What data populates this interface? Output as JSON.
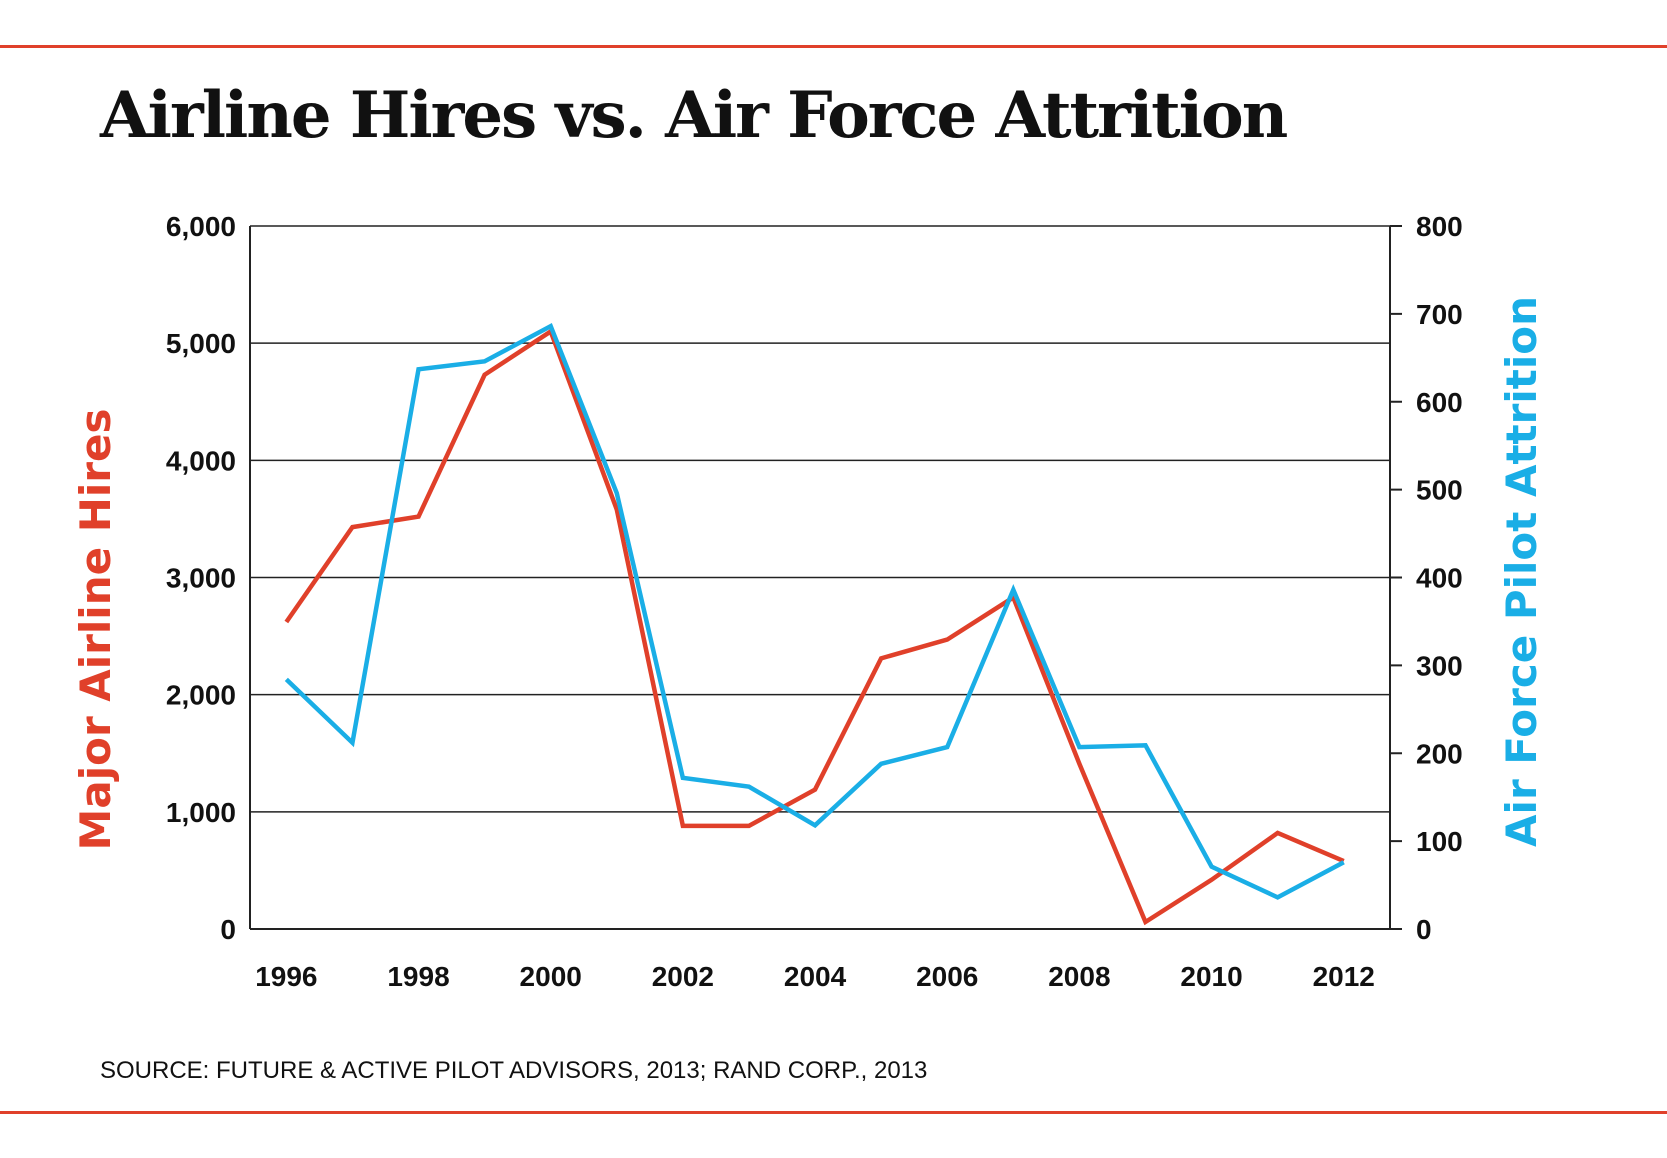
{
  "title": "Airline Hires vs. Air Force Attrition",
  "source": "SOURCE: FUTURE & ACTIVE PILOT ADVISORS, 2013; RAND CORP., 2013",
  "colors": {
    "rule": "#e0402a",
    "hires": "#e0402a",
    "attrition": "#1aaee6",
    "text": "#111111",
    "grid": "#222222"
  },
  "chart_data": {
    "type": "line",
    "title": "Airline Hires vs. Air Force Attrition",
    "xlabel": "",
    "x": [
      1996,
      1997,
      1998,
      1999,
      2000,
      2001,
      2002,
      2003,
      2004,
      2005,
      2006,
      2007,
      2008,
      2009,
      2010,
      2011,
      2012
    ],
    "x_ticks": [
      "1996",
      "1998",
      "2000",
      "2002",
      "2004",
      "2006",
      "2008",
      "2010",
      "2012"
    ],
    "x_range": [
      1995.45,
      2012.7
    ],
    "y_left": {
      "label": "Major Airline Hires",
      "range": [
        0,
        6000
      ],
      "ticks": [
        "0",
        "1,000",
        "2,000",
        "3,000",
        "4,000",
        "5,000",
        "6,000"
      ],
      "tick_values": [
        0,
        1000,
        2000,
        3000,
        4000,
        5000,
        6000
      ],
      "grid": true
    },
    "y_right": {
      "label": "Air Force Pilot Attrition",
      "range": [
        0,
        800
      ],
      "ticks": [
        "0",
        "100",
        "200",
        "300",
        "400",
        "500",
        "600",
        "700",
        "800"
      ],
      "tick_values": [
        0,
        100,
        200,
        300,
        400,
        500,
        600,
        700,
        800
      ]
    },
    "series": [
      {
        "name": "Major Airline Hires",
        "axis": "left",
        "color": "#e0402a",
        "values": [
          2620,
          3430,
          3520,
          4730,
          5100,
          3580,
          880,
          880,
          1190,
          2310,
          2470,
          2830,
          1410,
          60,
          420,
          820,
          580
        ]
      },
      {
        "name": "Air Force Pilot Attrition",
        "axis": "right",
        "color": "#1aaee6",
        "values": [
          284,
          212,
          637,
          646,
          686,
          496,
          172,
          162,
          118,
          188,
          207,
          386,
          207,
          209,
          71,
          36,
          76
        ]
      }
    ]
  }
}
